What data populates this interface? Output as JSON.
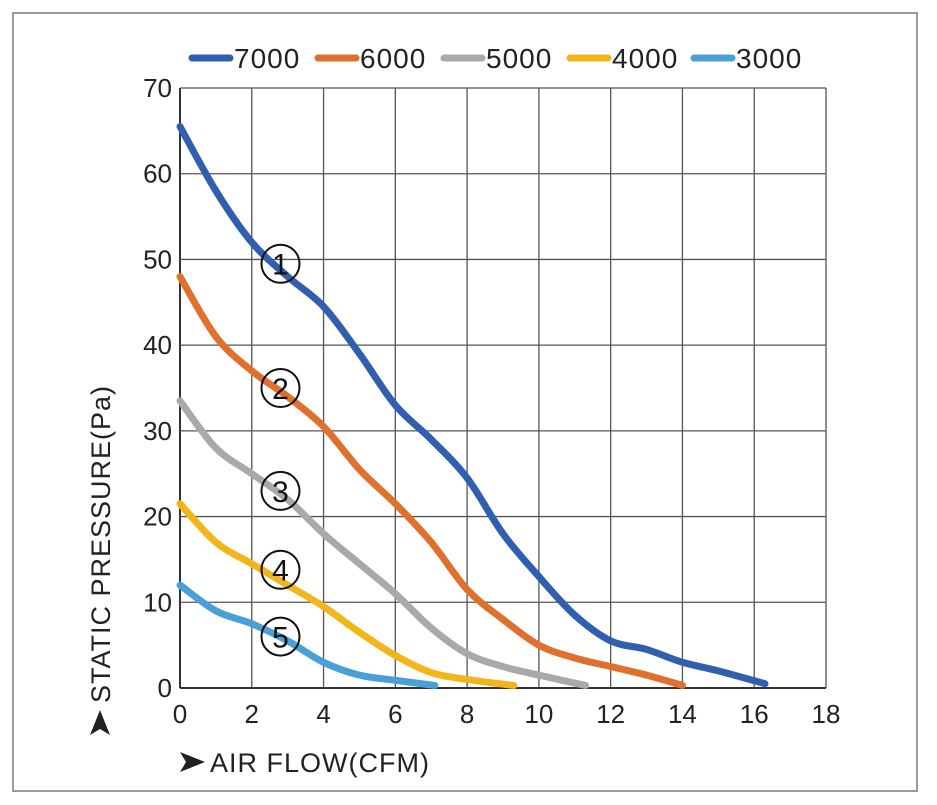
{
  "chart_data": {
    "type": "line",
    "xlabel": "AIR FLOW(CFM)",
    "ylabel": "STATIC PRESSURE(Pa)",
    "xlim": [
      0,
      18
    ],
    "ylim": [
      0,
      70
    ],
    "x_ticks": [
      0,
      2,
      4,
      6,
      8,
      10,
      12,
      14,
      16,
      18
    ],
    "y_ticks": [
      0,
      10,
      20,
      30,
      40,
      50,
      60,
      70
    ],
    "grid": true,
    "legend_position": "top",
    "series": [
      {
        "name": "7000",
        "color": "#2f5fae",
        "marker": "①",
        "x": [
          0,
          1,
          2,
          3,
          4,
          5,
          6,
          7,
          8,
          9,
          10,
          11,
          12,
          13,
          14,
          15,
          16.3
        ],
        "y": [
          65.5,
          58,
          52,
          48,
          44.5,
          39,
          33,
          29,
          24.5,
          18,
          13,
          8.5,
          5.5,
          4.5,
          3,
          2,
          0.5
        ]
      },
      {
        "name": "6000",
        "color": "#e0702e",
        "marker": "②",
        "x": [
          0,
          1,
          2,
          3,
          4,
          5,
          6,
          7,
          8,
          9,
          10,
          11,
          12,
          13,
          14
        ],
        "y": [
          48,
          41,
          37,
          34,
          30.5,
          25.5,
          21.5,
          17,
          11.5,
          8,
          5,
          3.5,
          2.5,
          1.5,
          0.3
        ]
      },
      {
        "name": "5000",
        "color": "#a9a9a9",
        "marker": "③",
        "x": [
          0,
          1,
          2,
          3,
          4,
          5,
          6,
          7,
          8,
          9,
          10,
          11.3
        ],
        "y": [
          33.5,
          28,
          25,
          22,
          18,
          14.5,
          11,
          7,
          4,
          2.5,
          1.5,
          0.3
        ]
      },
      {
        "name": "4000",
        "color": "#f2b51c",
        "marker": "④",
        "x": [
          0,
          1,
          2,
          3,
          4,
          5,
          6,
          7,
          8,
          9.3
        ],
        "y": [
          21.5,
          17,
          14.5,
          12,
          9.5,
          6.5,
          3.8,
          1.8,
          1,
          0.3
        ]
      },
      {
        "name": "3000",
        "color": "#4a9fd8",
        "marker": "⑤",
        "x": [
          0,
          1,
          2,
          3,
          4,
          5,
          6,
          7.1
        ],
        "y": [
          12,
          9,
          7.5,
          5.5,
          3,
          1.5,
          0.9,
          0.3
        ]
      }
    ]
  }
}
